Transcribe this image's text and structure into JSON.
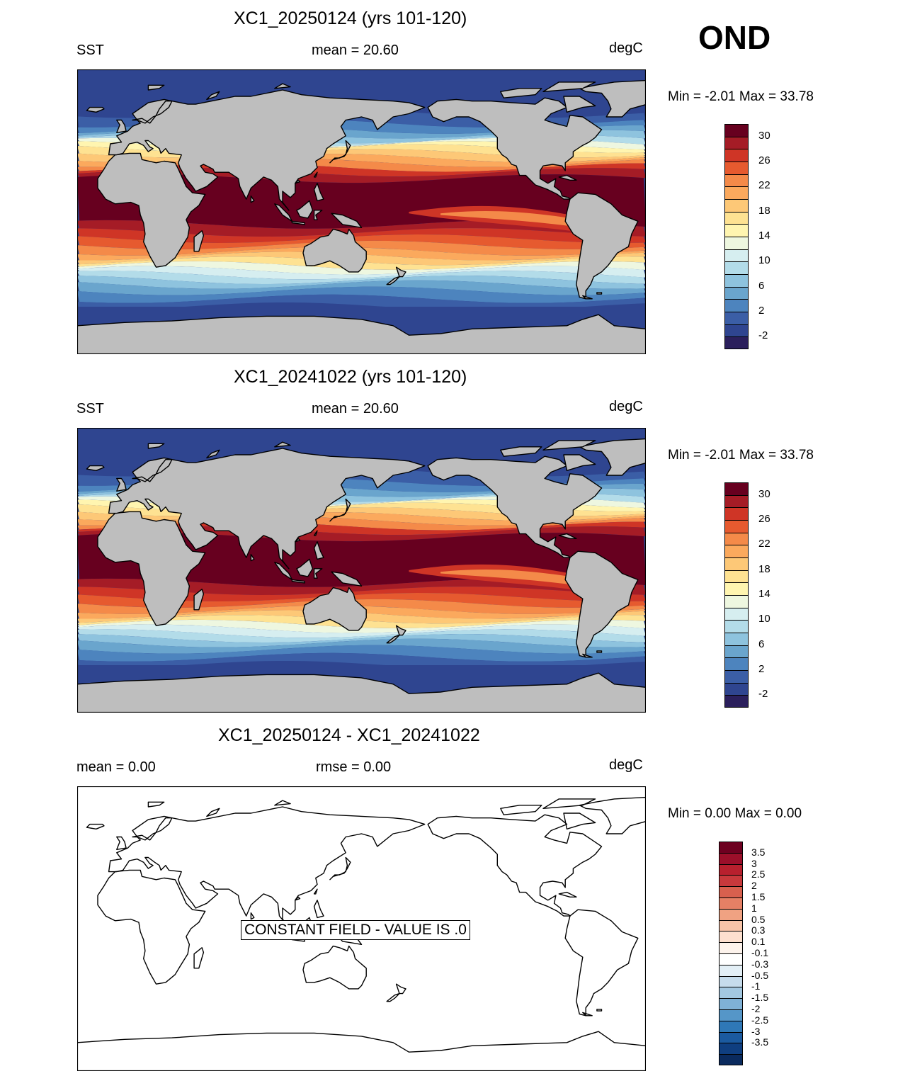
{
  "season_label": "OND",
  "panels": [
    {
      "title": "XC1_20250124 (yrs 101-120)",
      "left_label": "SST",
      "center_label": "mean =  20.60",
      "right_label": "degC",
      "minmax": "Min =  -2.01 Max =  33.78",
      "map_type": "sst"
    },
    {
      "title": "XC1_20241022 (yrs 101-120)",
      "left_label": "SST",
      "center_label": "mean =  20.60",
      "right_label": "degC",
      "minmax": "Min =  -2.01 Max =  33.78",
      "map_type": "sst"
    },
    {
      "title": "XC1_20250124 - XC1_20241022",
      "left_label": "mean =   0.00",
      "center_label": "rmse =   0.00",
      "right_label": "degC",
      "minmax": "Min =   0.00 Max =   0.00",
      "map_type": "diff",
      "annotation": "CONSTANT FIELD - VALUE IS .0"
    }
  ],
  "sst_colorbar": {
    "labels": [
      "30",
      "26",
      "22",
      "18",
      "14",
      "10",
      "6",
      "2",
      "-2"
    ],
    "colors": [
      "#67001f",
      "#a51c26",
      "#cf3526",
      "#e65a2f",
      "#f48a49",
      "#fba95d",
      "#fdc877",
      "#fee292",
      "#fff5b0",
      "#eef7e0",
      "#d6eef0",
      "#b3dce9",
      "#8ec3de",
      "#6aa5cd",
      "#4d84be",
      "#3b5ea6",
      "#2f4590",
      "#2b1f5c"
    ]
  },
  "diff_colorbar": {
    "labels": [
      "3.5",
      "3",
      "2.5",
      "2",
      "1.5",
      "1",
      "0.5",
      "0.3",
      "0.1",
      "-0.1",
      "-0.3",
      "-0.5",
      "-1",
      "-1.5",
      "-2",
      "-2.5",
      "-3",
      "-3.5"
    ],
    "colors": [
      "#6e0020",
      "#9b0f2a",
      "#b8202e",
      "#c8393c",
      "#d8604e",
      "#e68065",
      "#f0a282",
      "#f8c4a8",
      "#fde0cf",
      "#fdf3ec",
      "#ffffff",
      "#e3eff6",
      "#c6dcec",
      "#a3c8e1",
      "#7fb1d6",
      "#5596c8",
      "#2f78b7",
      "#1b5aa0",
      "#0f3e80",
      "#0a2a5e"
    ]
  },
  "colors": {
    "land": "#bebebe",
    "coast": "#000000"
  }
}
